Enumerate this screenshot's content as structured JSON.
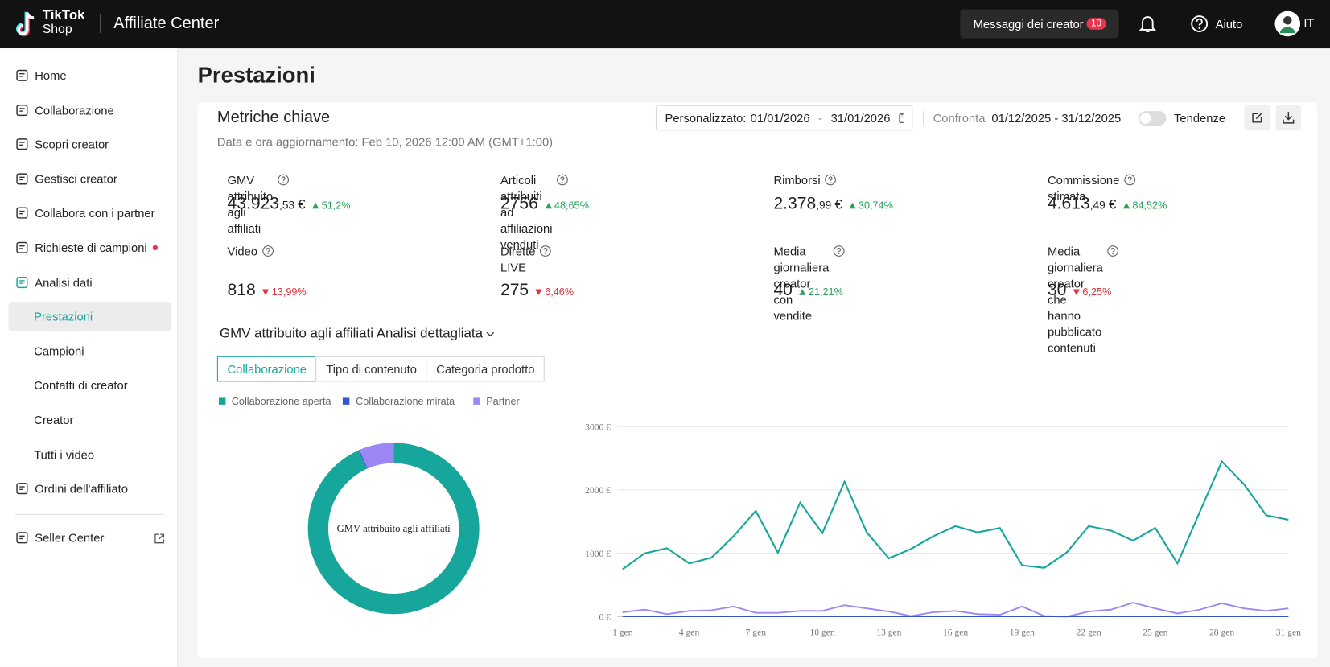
{
  "header": {
    "brand": "TikTok",
    "brand_sub": "Shop",
    "app": "Affiliate Center",
    "messages": "Messaggi dei creator",
    "badge": 10,
    "help": "Aiuto",
    "language": "IT"
  },
  "sidebar": {
    "items": [
      {
        "label": "Home"
      },
      {
        "label": "Collaborazione"
      },
      {
        "label": "Scopri creator"
      },
      {
        "label": "Gestisci creator"
      },
      {
        "label": "Collabora con i partner"
      },
      {
        "label": "Richieste di campioni",
        "dot": true
      },
      {
        "label": "Analisi dati",
        "active": true,
        "children": [
          {
            "label": "Prestazioni",
            "selected": true
          },
          {
            "label": "Campioni"
          },
          {
            "label": "Contatti di creator"
          },
          {
            "label": "Creator"
          },
          {
            "label": "Tutti i video"
          }
        ]
      },
      {
        "label": "Ordini dell'affiliato"
      }
    ],
    "footer": {
      "label": "Seller Center",
      "external": true
    }
  },
  "page": {
    "title": "Prestazioni"
  },
  "metrics_card": {
    "title": "Metriche chiave",
    "updated": "Data e ora aggiornamento: Feb 10, 2026 12:00 AM (GMT+1:00)",
    "range_label": "Personalizzato:",
    "range_start": "01/01/2026",
    "range_sep": "-",
    "range_end": "31/01/2026",
    "compare_label": "Confronta",
    "compare_range": "01/12/2025 - 31/12/2025",
    "toggle_label": "Tendenze",
    "metrics": [
      {
        "name": "GMV attribuito agli affiliati",
        "value": "43.923",
        "cents": ",53",
        "currency": "€",
        "change": "51,2%",
        "trend": "up"
      },
      {
        "name": "Articoli attribuiti ad affiliazioni venduti",
        "value": "2756",
        "change": "48,65%",
        "trend": "up"
      },
      {
        "name": "Rimborsi",
        "value": "2.378",
        "cents": ",99",
        "currency": "€",
        "change": "30,74%",
        "trend": "up"
      },
      {
        "name": "Commissione stimata",
        "value": "4.613",
        "cents": ",49",
        "currency": "€",
        "change": "84,52%",
        "trend": "up"
      },
      {
        "name": "Video",
        "value": "818",
        "change": "13,99%",
        "trend": "down"
      },
      {
        "name": "Dirette LIVE",
        "value": "275",
        "change": "6,46%",
        "trend": "down"
      },
      {
        "name": "Media giornaliera creator con vendite",
        "value": "40",
        "change": "21,21%",
        "trend": "up"
      },
      {
        "name": "Media giornaliera creator che hanno pubblicato contenuti",
        "value": "30",
        "change": "6,25%",
        "trend": "down"
      }
    ]
  },
  "breakdown": {
    "title": "GMV attribuito agli affiliati Analisi dettagliata",
    "tabs": [
      "Collaborazione",
      "Tipo di contenuto",
      "Categoria prodotto"
    ],
    "active_tab": 0
  },
  "chart_data": [
    {
      "type": "pie",
      "donut": true,
      "center_label": "GMV attribuito agli affiliati",
      "values": [
        93.3,
        0.2,
        6.5
      ],
      "colors": [
        "#16a69b",
        "#3556d0",
        "#9b87f5"
      ]
    },
    {
      "type": "line",
      "categories": [
        "1 gen",
        null,
        null,
        "4 gen",
        null,
        null,
        "7 gen",
        null,
        null,
        "10 gen",
        null,
        null,
        "13 gen",
        null,
        null,
        "16 gen",
        null,
        null,
        "19 gen",
        null,
        null,
        "22 gen",
        null,
        null,
        "25 gen",
        null,
        null,
        "28 gen",
        null,
        null,
        "31 gen"
      ],
      "series": [
        {
          "name": "Collaborazione aperta",
          "color": "#16a69b",
          "values": [
            750,
            1000,
            1080,
            840,
            930,
            1270,
            1670,
            1010,
            1800,
            1320,
            2130,
            1330,
            920,
            1070,
            1270,
            1430,
            1330,
            1400,
            810,
            770,
            1010,
            1430,
            1360,
            1200,
            1400,
            840,
            1650,
            2450,
            2090,
            1600,
            1530
          ]
        },
        {
          "name": "Collaborazione mirata",
          "color": "#3556d0",
          "values": [
            5,
            5,
            5,
            5,
            5,
            5,
            5,
            5,
            5,
            5,
            5,
            5,
            5,
            5,
            5,
            5,
            5,
            5,
            5,
            5,
            5,
            5,
            5,
            5,
            5,
            5,
            5,
            5,
            5,
            5,
            5
          ]
        },
        {
          "name": "Partner",
          "color": "#9b87f5",
          "values": [
            70,
            110,
            40,
            90,
            100,
            160,
            60,
            60,
            90,
            90,
            180,
            130,
            80,
            10,
            70,
            90,
            40,
            30,
            160,
            10,
            0,
            80,
            110,
            220,
            130,
            50,
            110,
            210,
            130,
            90,
            130
          ]
        }
      ],
      "ylim": [
        0,
        3000
      ],
      "yticks": [
        {
          "value": 0,
          "label": "0 €"
        },
        {
          "value": 1000,
          "label": "1000 €"
        },
        {
          "value": 2000,
          "label": "2000 €"
        },
        {
          "value": 3000,
          "label": "3000 €"
        }
      ],
      "grid": true
    }
  ]
}
